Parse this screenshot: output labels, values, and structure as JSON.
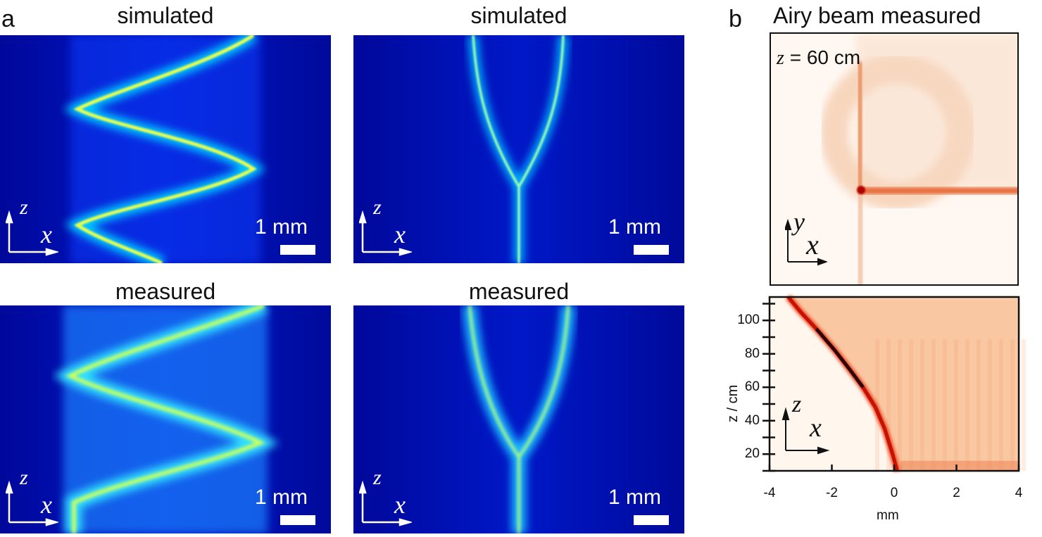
{
  "panel_labels": {
    "a": "a",
    "b": "b"
  },
  "panel_a": {
    "top_left_title": "simulated",
    "top_middle_title": "simulated",
    "bottom_left_title": "measured",
    "bottom_middle_title": "measured",
    "scale_bar": "1 mm",
    "axis_vertical": "z",
    "axis_horizontal": "x",
    "colormap": [
      "#00008f",
      "#0030ff",
      "#00c8ff",
      "#ffff40",
      "#ff3000"
    ]
  },
  "panel_b": {
    "title": "Airy beam measured",
    "top_annotation_var": "z",
    "top_annotation_value": "= 60 cm",
    "top_axis_vertical": "y",
    "top_axis_horizontal": "x",
    "bottom_axis_vertical": "z",
    "bottom_axis_horizontal": "x",
    "colormap": [
      "#fff8f0",
      "#f7b07a",
      "#e8401a",
      "#1a0000"
    ]
  },
  "chart_data": {
    "type": "heatmap",
    "xlabel": "mm",
    "ylabel": "z / cm",
    "xlim": [
      -4,
      4
    ],
    "ylim": [
      10,
      114
    ],
    "xticks": [
      "-4",
      "-2",
      "0",
      "2",
      "4"
    ],
    "yticks": [
      "20",
      "40",
      "60",
      "80",
      "100"
    ],
    "xtick_values": [
      -4,
      -2,
      0,
      2,
      4
    ],
    "ytick_values": [
      20,
      40,
      60,
      80,
      100
    ],
    "grid": false,
    "main_lobe": [
      {
        "x": 0.1,
        "z": 10
      },
      {
        "x": -0.05,
        "z": 20
      },
      {
        "x": -0.3,
        "z": 35
      },
      {
        "x": -0.6,
        "z": 48
      },
      {
        "x": -1.0,
        "z": 60
      },
      {
        "x": -1.4,
        "z": 70
      },
      {
        "x": -1.9,
        "z": 82
      },
      {
        "x": -2.5,
        "z": 95
      },
      {
        "x": -3.0,
        "z": 105
      },
      {
        "x": -3.4,
        "z": 114
      }
    ]
  }
}
